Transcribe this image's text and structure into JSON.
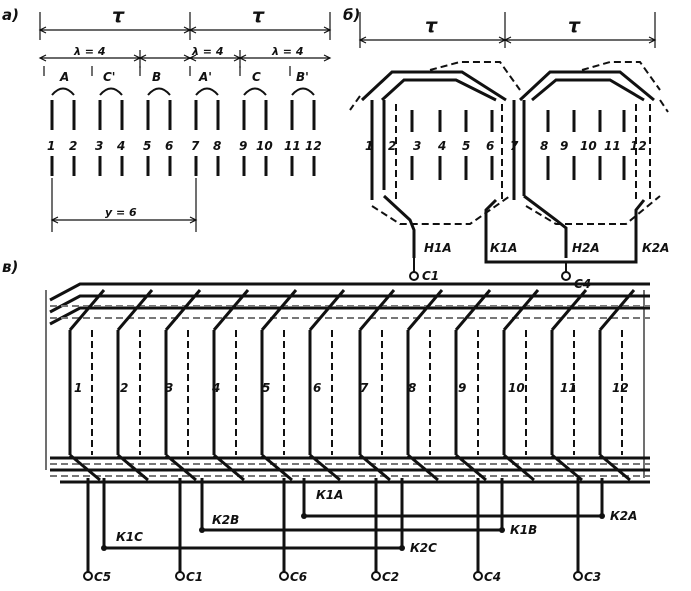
{
  "panel_a": {
    "label": "а)",
    "tau": [
      "τ",
      "τ"
    ],
    "lambda": [
      "λ = 4",
      "λ = 4",
      "λ = 4"
    ],
    "phase_labels": [
      "A",
      "C'",
      "B",
      "A'",
      "C",
      "B'"
    ],
    "slots": [
      "1",
      "2",
      "3",
      "4",
      "5",
      "6",
      "7",
      "8",
      "9",
      "10",
      "11",
      "12"
    ],
    "pitch": "y = 6"
  },
  "panel_b": {
    "label": "б)",
    "tau": [
      "τ",
      "τ"
    ],
    "slots": [
      "1",
      "2",
      "3",
      "4",
      "5",
      "6",
      "7",
      "8",
      "9",
      "10",
      "11",
      "12"
    ],
    "terminals": [
      "Н1А",
      "К1А",
      "Н2А",
      "К2А"
    ],
    "outputs": [
      "С1",
      "С4"
    ]
  },
  "panel_c": {
    "label": "в)",
    "slots": [
      "1",
      "2",
      "3",
      "4",
      "5",
      "6",
      "7",
      "8",
      "9",
      "10",
      "11",
      "12"
    ],
    "junctions": [
      "К1С",
      "К2В",
      "К1А",
      "К2С",
      "К1В",
      "К2А"
    ],
    "outputs": [
      "С5",
      "С1",
      "С6",
      "С2",
      "С4",
      "С3"
    ]
  },
  "colors": {
    "ink": "#111111",
    "background": "#ffffff",
    "dashed": "#555555"
  }
}
